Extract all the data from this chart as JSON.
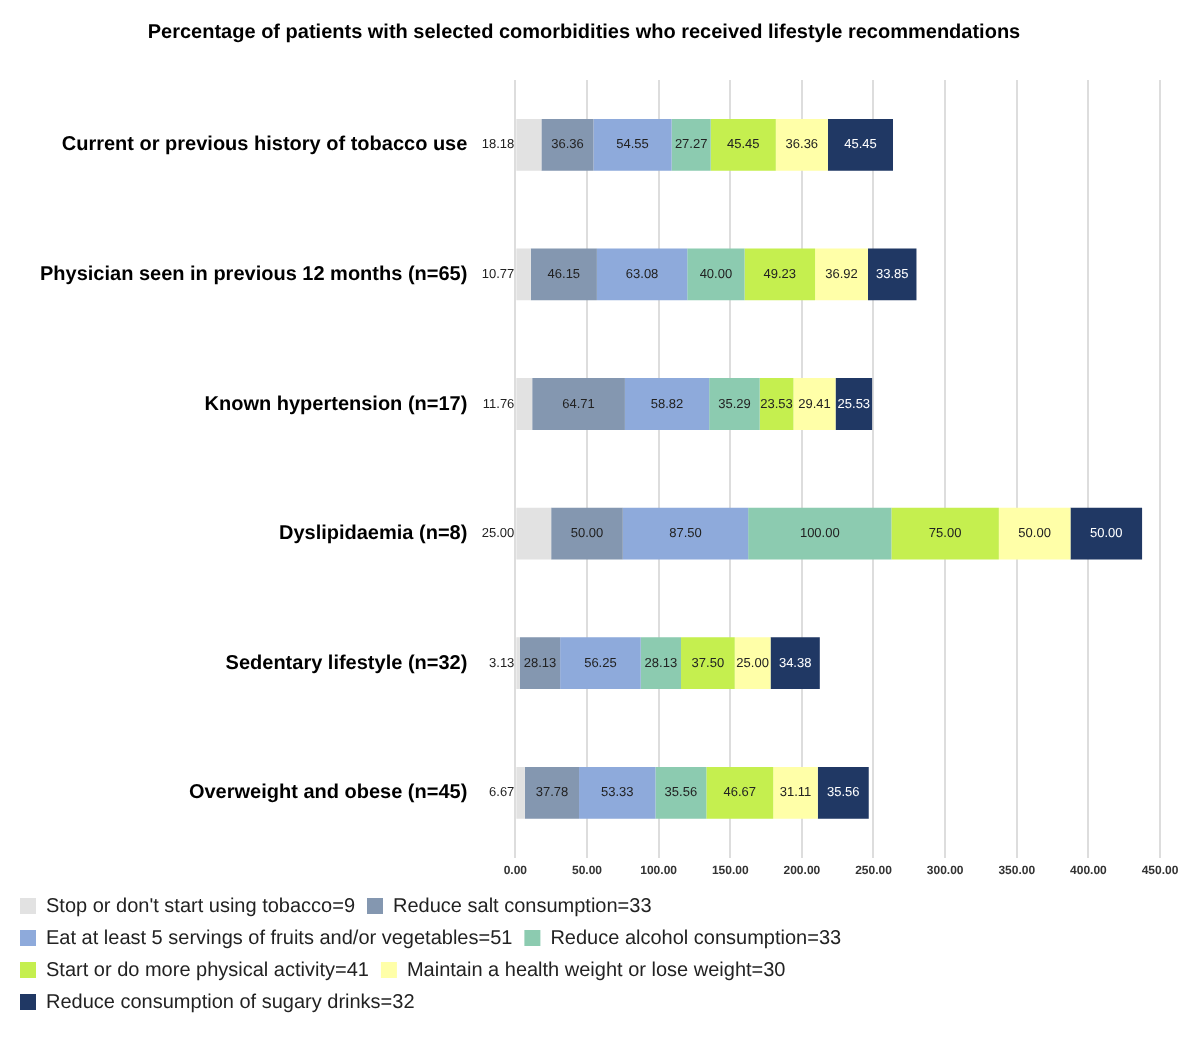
{
  "chart_data": {
    "type": "bar",
    "orientation": "horizontal",
    "stacked": true,
    "title": "Percentage of patients with selected comorbidities who received lifestyle recommendations",
    "categories": [
      "Current or previous history of tobacco use",
      "Physician seen in previous 12 months (n=65)",
      "Known hypertension (n=17)",
      "Dyslipidaemia (n=8)",
      "Sedentary lifestyle (n=32)",
      "Overweight and obese (n=45)"
    ],
    "series": [
      {
        "name": "Stop or don't start using tobacco=9",
        "color": "#e2e2e2",
        "values": [
          18.18,
          10.77,
          11.76,
          25,
          3.13,
          6.67
        ],
        "value_labels": [
          "18.18",
          "10.77",
          "11.76",
          "25.00",
          "3.13",
          "6.67"
        ]
      },
      {
        "name": "Reduce salt consumption=33",
        "color": "#8497b0",
        "values": [
          36.36,
          46.15,
          64.71,
          50,
          28.13,
          37.78
        ],
        "value_labels": [
          "36.36",
          "46.15",
          "64.71",
          "50.00",
          "28.13",
          "37.78"
        ]
      },
      {
        "name": "Eat at least 5 servings of fruits and/or vegetables=51",
        "color": "#8eaadb",
        "values": [
          54.55,
          63.08,
          58.82,
          87.5,
          56.25,
          53.33
        ],
        "value_labels": [
          "54.55",
          "63.08",
          "58.82",
          "87.50",
          "56.25",
          "53.33"
        ]
      },
      {
        "name": "Reduce alcohol consumption=33",
        "color": "#8ccbb0",
        "values": [
          27.27,
          40,
          35.29,
          100,
          28.13,
          35.56
        ],
        "value_labels": [
          "27.27",
          "40.00",
          "35.29",
          "100.00",
          "28.13",
          "35.56"
        ]
      },
      {
        "name": "Start or do more physical activity=41",
        "color": "#c5ef4f",
        "values": [
          45.45,
          49.23,
          23.53,
          75,
          37.5,
          46.67
        ],
        "value_labels": [
          "45.45",
          "49.23",
          "23.53",
          "75.00",
          "37.50",
          "46.67"
        ]
      },
      {
        "name": "Maintain a health weight or lose weight=30",
        "color": "#ffffa8",
        "values": [
          36.36,
          36.92,
          29.41,
          50,
          25,
          31.11
        ],
        "value_labels": [
          "36.36",
          "36.92",
          "29.41",
          "50.00",
          "25.00",
          "31.11"
        ]
      },
      {
        "name": "Reduce consumption of sugary drinks=32",
        "color": "#203864",
        "values": [
          45.45,
          33.85,
          25.53,
          50,
          34.38,
          35.56
        ],
        "value_labels": [
          "45.45",
          "33.85",
          "25.53",
          "50.00",
          "34.38",
          "35.56"
        ]
      }
    ],
    "xlim": [
      0,
      450
    ],
    "xticks": [
      {
        "value": 0,
        "label": "0.00"
      },
      {
        "value": 50,
        "label": "50.00"
      },
      {
        "value": 100,
        "label": "100.00"
      },
      {
        "value": 150,
        "label": "150.00"
      },
      {
        "value": 200,
        "label": "200.00"
      },
      {
        "value": 250,
        "label": "250.00"
      },
      {
        "value": 300,
        "label": "300.00"
      },
      {
        "value": 350,
        "label": "350.00"
      },
      {
        "value": 400,
        "label": "400.00"
      },
      {
        "value": 450,
        "label": "450.00"
      }
    ],
    "grid": "x",
    "legend": "bottom"
  }
}
